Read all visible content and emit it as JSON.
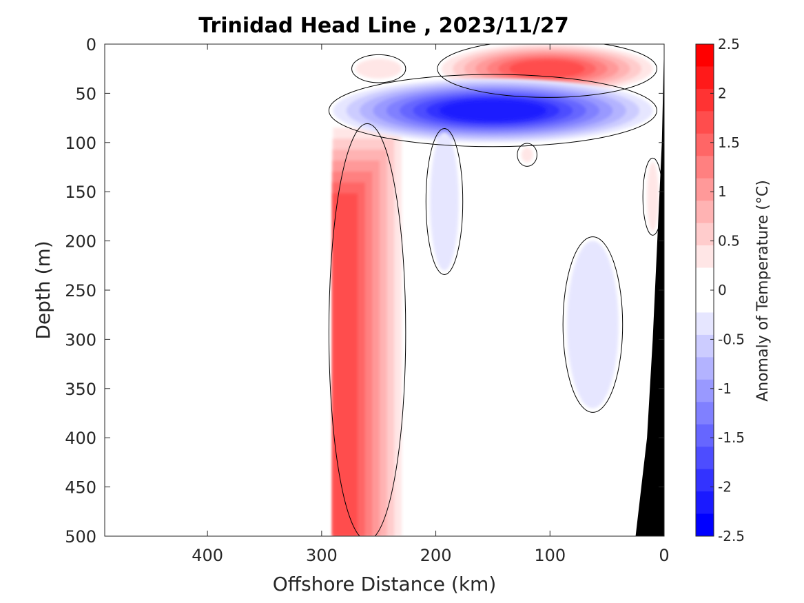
{
  "chart_data": {
    "type": "heatmap",
    "subtype": "filled-contour-section",
    "title": "Trinidad Head Line , 2023/11/27",
    "xlabel": "Offshore Distance (km)",
    "ylabel": "Depth (m)",
    "xlim": [
      490,
      0
    ],
    "ylim": [
      500,
      0
    ],
    "x_reversed": true,
    "y_reversed": true,
    "x_ticks": [
      400,
      300,
      200,
      100,
      0
    ],
    "x_tick_labels": [
      "400",
      "300",
      "200",
      "100",
      "0"
    ],
    "y_ticks": [
      0,
      50,
      100,
      150,
      200,
      250,
      300,
      350,
      400,
      450,
      500
    ],
    "y_tick_labels": [
      "0",
      "50",
      "100",
      "150",
      "200",
      "250",
      "300",
      "350",
      "400",
      "450",
      "500"
    ],
    "data_x_range_km": [
      290,
      0
    ],
    "zero_contour_color": "#000000",
    "bathymetry_color": "#000000",
    "colorbar": {
      "label": "Anomaly of Temperature (°C)",
      "min": -2.5,
      "max": 2.5,
      "step": 0.25,
      "ticks": [
        2.5,
        2,
        1.5,
        1,
        0.5,
        0,
        -0.5,
        -1,
        -1.5,
        -2,
        -2.5
      ],
      "tick_labels": [
        "2.5",
        "2",
        "1.5",
        "1",
        "0.5",
        "0",
        "-0.5",
        "-1",
        "-1.5",
        "-2",
        "-2.5"
      ],
      "colors": [
        "#FF0000",
        "#FF1A1A",
        "#FF3333",
        "#FF4D4D",
        "#FF6666",
        "#FF8080",
        "#FF9999",
        "#FFB3B3",
        "#FFCCCC",
        "#FFE6E6",
        "#FFFFFF",
        "#FFFFFF",
        "#E6E6FF",
        "#CCCCFF",
        "#B3B3FF",
        "#9999FF",
        "#8080FF",
        "#6666FF",
        "#4D4DFF",
        "#3333FF",
        "#1A1AFF",
        "#0000FF"
      ]
    },
    "anomaly_regions": [
      {
        "name": "Offshore warm column",
        "x_km": [
          290,
          230
        ],
        "depth_m": [
          85,
          500
        ],
        "peak_anomaly": 1.75
      },
      {
        "name": "Nearshore surface warm patch",
        "x_km": [
          195,
          10
        ],
        "depth_m": [
          0,
          50
        ],
        "peak_anomaly": 1.75
      },
      {
        "name": "Small surface warm spot",
        "x_km": [
          270,
          230
        ],
        "depth_m": [
          15,
          35
        ],
        "peak_anomaly": 0.25
      },
      {
        "name": "Subsurface cool band",
        "x_km": [
          290,
          10
        ],
        "depth_m": [
          35,
          100
        ],
        "peak_anomaly": -2.25
      },
      {
        "name": "Mid-depth cool tongue",
        "x_km": [
          205,
          180
        ],
        "depth_m": [
          90,
          230
        ],
        "peak_anomaly": -0.25
      },
      {
        "name": "Deep cool patch near shore",
        "x_km": [
          85,
          40
        ],
        "depth_m": [
          200,
          370
        ],
        "peak_anomaly": -0.25
      },
      {
        "name": "Small warm spot",
        "x_km": [
          125,
          115
        ],
        "depth_m": [
          105,
          120
        ],
        "peak_anomaly": 0.25
      },
      {
        "name": "Inshore warm patch",
        "x_km": [
          15,
          5
        ],
        "depth_m": [
          120,
          190
        ],
        "peak_anomaly": 0.25
      }
    ],
    "bathymetry_profile": [
      [
        0,
        0
      ],
      [
        2,
        100
      ],
      [
        6,
        200
      ],
      [
        10,
        300
      ],
      [
        15,
        400
      ],
      [
        20,
        450
      ],
      [
        25,
        500
      ]
    ]
  }
}
